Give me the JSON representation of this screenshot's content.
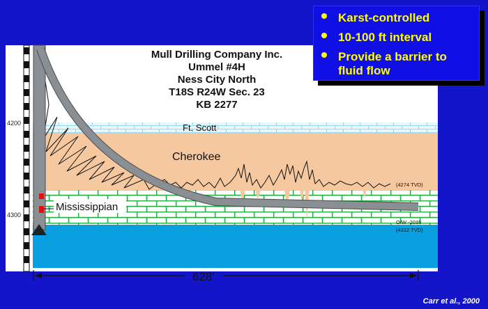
{
  "bullets": [
    {
      "text": "Karst-controlled"
    },
    {
      "text": "10-100 ft interval"
    },
    {
      "text": "Provide a barrier to"
    },
    {
      "text": "fluid flow"
    }
  ],
  "well_title": {
    "line1": "Mull Drilling Company Inc.",
    "line2": "Ummel #4H",
    "line3": "Ness City North",
    "line4": "T18S R24W Sec. 23",
    "line5": "KB 2277"
  },
  "depth_labels": {
    "d4200": "4200",
    "d4300": "4300"
  },
  "formations": {
    "ft_scott": "Ft. Scott",
    "cherokee": "Cherokee",
    "mississippian": "Mississippian"
  },
  "annotations": {
    "tvd_4274": "(4274 TVD)",
    "ow": "O/W -2035",
    "tvd_4312": "(4312 TVD)"
  },
  "lateral_length": "628’",
  "citation": "Carr et al., 2000",
  "colors": {
    "background": "#1414c8",
    "ft_scott_bg": "#dff3fb",
    "cherokee": "#f5c8a0",
    "mississippian_bricks": "#22aa44",
    "water": "#0aa0e0",
    "bullet_text": "#ffff00",
    "well_path": "#8a8f94"
  }
}
